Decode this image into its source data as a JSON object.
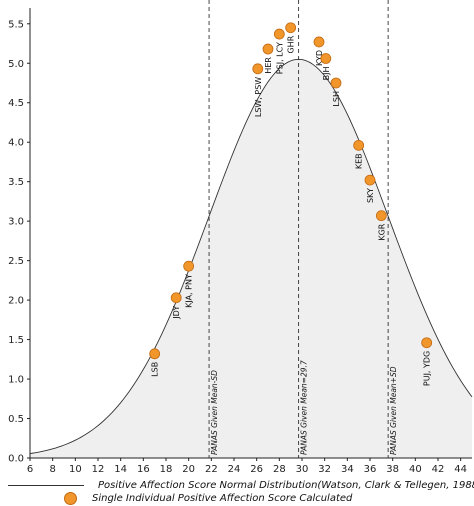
{
  "chart_data": {
    "type": "scatter",
    "title": "",
    "xlabel": "",
    "ylabel": "",
    "x_ticks": [
      6,
      8,
      10,
      12,
      14,
      16,
      18,
      20,
      22,
      24,
      26,
      28,
      30,
      32,
      34,
      36,
      38,
      40,
      42,
      44
    ],
    "y_ticks": [
      "0.0",
      "0.5",
      "1.0",
      "1.5",
      "2.0",
      "2.5",
      "3.0",
      "3.5",
      "4.0",
      "4.5",
      "5.0",
      "5.5"
    ],
    "xlim": [
      6,
      45
    ],
    "ylim": [
      0,
      5.7
    ],
    "grid": false,
    "legend_position": "bottom",
    "colors": {
      "points": "#f0962a",
      "curve_fill": "#efefef",
      "curve_line": "#333333"
    },
    "curve": {
      "name": "Positive Affection Score Normal Distribution(Watson, Clark & Tellegen, 1988)",
      "mean": 29.7,
      "sd": 7.9,
      "peak": 5.05
    },
    "reference_lines": [
      {
        "x": 21.8,
        "label": "PANAS Given Mean-SD"
      },
      {
        "x": 29.7,
        "label": "PANAS Given Mean=29.7"
      },
      {
        "x": 37.6,
        "label": "PANAS Given Mean+SD"
      }
    ],
    "series": [
      {
        "name": "Single Individual Positive Affection Score Calculated",
        "points": [
          {
            "label": "LSB",
            "x": 17.0,
            "y": 1.32
          },
          {
            "label": "JDY",
            "x": 18.9,
            "y": 2.03
          },
          {
            "label": "KJA, PNY",
            "x": 20.0,
            "y": 2.43
          },
          {
            "label": "LSW, PSW",
            "x": 26.1,
            "y": 4.93
          },
          {
            "label": "HER",
            "x": 27.0,
            "y": 5.18
          },
          {
            "label": "PSJ, LCY",
            "x": 28.0,
            "y": 5.37
          },
          {
            "label": "GHR",
            "x": 29.0,
            "y": 5.45
          },
          {
            "label": "KYD",
            "x": 31.5,
            "y": 5.27
          },
          {
            "label": "BJH",
            "x": 32.1,
            "y": 5.06
          },
          {
            "label": "LSH",
            "x": 33.0,
            "y": 4.75
          },
          {
            "label": "KEB",
            "x": 35.0,
            "y": 3.96
          },
          {
            "label": "SKY",
            "x": 36.0,
            "y": 3.52
          },
          {
            "label": "KGR",
            "x": 37.0,
            "y": 3.07
          },
          {
            "label": "PUJ, YDG",
            "x": 41.0,
            "y": 1.46
          }
        ]
      }
    ]
  },
  "legend": {
    "curve_label": "Positive Affection Score Normal Distribution(Watson, Clark & Tellegen, 1988)",
    "points_label": "Single Individual Positive Affection Score Calculated"
  }
}
